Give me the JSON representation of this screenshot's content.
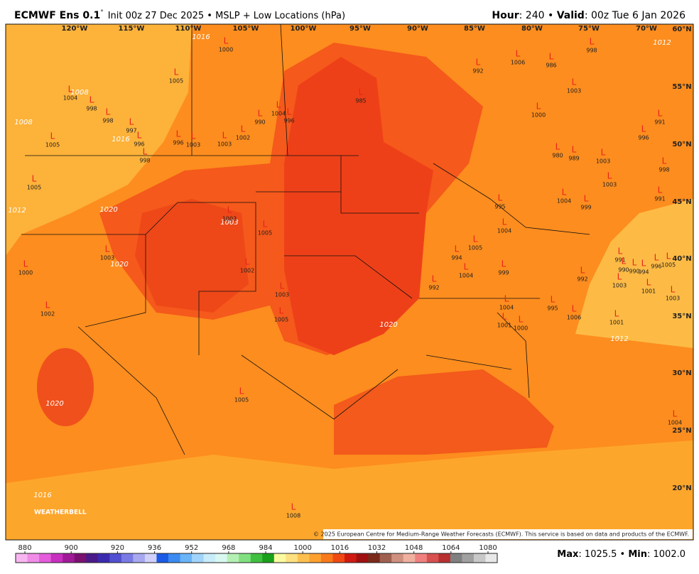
{
  "header": {
    "title": "ECMWF Ens 0.1",
    "degree": "°",
    "subtitle": "Init 00z 27 Dec 2025 • MSLP + Low Locations (hPa)",
    "hour_label": "Hour",
    "hour_text": ": 240 • ",
    "valid_label": "Valid",
    "valid_text": ": 00z Tue 6 Jan 2026"
  },
  "map": {
    "lon_labels": [
      "120°W",
      "115°W",
      "110°W",
      "105°W",
      "100°W",
      "95°W",
      "90°W",
      "85°W",
      "80°W",
      "75°W",
      "70°W"
    ],
    "lat_labels": [
      "60°N",
      "55°N",
      "50°N",
      "45°N",
      "40°N",
      "35°N",
      "30°N",
      "25°N",
      "20°N"
    ],
    "contour_labels": [
      "1016",
      "1008",
      "1008",
      "1016",
      "1012",
      "1020",
      "1020",
      "1003",
      "1020",
      "1020",
      "1016",
      "1012",
      "1012"
    ],
    "low_symbol": "L",
    "lows": [
      1000,
      1005,
      985,
      992,
      1006,
      986,
      998,
      1003,
      1000,
      991,
      996,
      990,
      1004,
      996,
      1002,
      1003,
      1003,
      996,
      996,
      998,
      998,
      997,
      998,
      1005,
      1004,
      980,
      989,
      1003,
      1003,
      998,
      991,
      1004,
      999,
      995,
      1004,
      1005,
      1003,
      1005,
      1003,
      1002,
      1003,
      1005,
      1000,
      1002,
      994,
      1005,
      992,
      1004,
      999,
      1004,
      1001,
      1000,
      995,
      1006,
      991,
      990,
      990,
      994,
      1005,
      996,
      1003,
      1001,
      1003,
      1001,
      1005,
      1004,
      1008,
      992
    ],
    "copyright": "© 2025 European Centre for Medium-Range Weather Forecasts (ECMWF). This service is based on data and products of the ECMWF.",
    "brand": "WEATHERBELL"
  },
  "colorbar": {
    "range": [
      876,
      1084
    ],
    "ticks": [
      880,
      900,
      920,
      936,
      952,
      968,
      984,
      1000,
      1016,
      1032,
      1048,
      1064,
      1080
    ],
    "colors": [
      "#f7b6f0",
      "#f08ce8",
      "#e45cdc",
      "#c830c0",
      "#a01a98",
      "#7a1070",
      "#4a1a8a",
      "#3a2ab0",
      "#5050d0",
      "#7a7ae6",
      "#a8a8f0",
      "#d0d0fa",
      "#1a5ae6",
      "#3a8af0",
      "#6ab4f8",
      "#a0d4fa",
      "#c8ecfa",
      "#d8f8f0",
      "#b4f0b4",
      "#80e080",
      "#40c040",
      "#1aa01a",
      "#fafaa0",
      "#fde080",
      "#fdc050",
      "#fda030",
      "#f87a1a",
      "#f04a14",
      "#d01a10",
      "#a01010",
      "#7a2a1a",
      "#a06050",
      "#d09080",
      "#f0b0a0",
      "#f08080",
      "#d85050",
      "#b83030",
      "#808080",
      "#a0a0a0",
      "#c8c8c8",
      "#e8e8e8"
    ],
    "max_label": "Max",
    "max_text": ": 1025.5 • ",
    "min_label": "Min",
    "min_text": ": 1002.0"
  }
}
